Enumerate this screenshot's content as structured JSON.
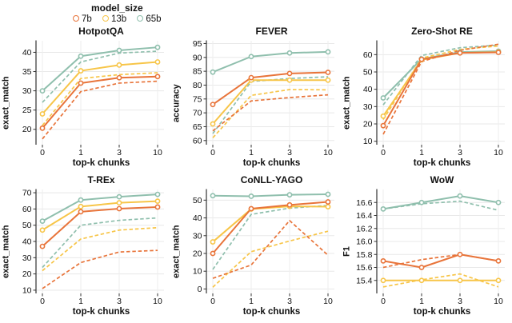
{
  "legend": {
    "title": "model_size",
    "items": [
      {
        "label": "7b",
        "color": "#e8743a"
      },
      {
        "label": "13b",
        "color": "#f7c548"
      },
      {
        "label": "65b",
        "color": "#8fbfad"
      }
    ]
  },
  "chart_data": {
    "note": "see charts array"
  },
  "charts": [
    {
      "type": "line",
      "title": "HotpotQA",
      "ylabel": "exact_match",
      "xlabel": "top-k chunks",
      "x_labels": [
        "0",
        "1",
        "3",
        "10"
      ],
      "ylim": [
        16,
        43
      ],
      "ytick_vals": [
        20,
        25,
        30,
        35,
        40
      ],
      "ytick_labels": [
        "20",
        "25",
        "30",
        "35",
        "40"
      ],
      "series": [
        {
          "model": "65b",
          "style": "solid",
          "values": [
            30,
            39,
            40.5,
            41.3
          ]
        },
        {
          "model": "65b",
          "style": "dashed",
          "values": [
            27,
            37.5,
            39.8,
            40.3
          ]
        },
        {
          "model": "13b",
          "style": "solid",
          "values": [
            24,
            35.2,
            36.7,
            37.5
          ]
        },
        {
          "model": "13b",
          "style": "dashed",
          "values": [
            21,
            33.2,
            34.2,
            34.7
          ]
        },
        {
          "model": "7b",
          "style": "solid",
          "values": [
            20.3,
            32,
            33.4,
            33.7
          ]
        },
        {
          "model": "7b",
          "style": "dashed",
          "values": [
            17.5,
            29.8,
            32,
            32.5
          ]
        }
      ]
    },
    {
      "type": "line",
      "title": "FEVER",
      "ylabel": "accuracy",
      "xlabel": "top-k chunks",
      "x_labels": [
        "0",
        "1",
        "3",
        "10"
      ],
      "ylim": [
        58.5,
        96
      ],
      "ytick_vals": [
        60,
        65,
        70,
        75,
        80,
        85,
        90,
        95
      ],
      "ytick_labels": [
        "60",
        "65",
        "70",
        "75",
        "80",
        "85",
        "90",
        "95"
      ],
      "series": [
        {
          "model": "65b",
          "style": "solid",
          "values": [
            84.7,
            90.3,
            91.6,
            92
          ]
        },
        {
          "model": "65b",
          "style": "dashed",
          "values": [
            62.5,
            81.3,
            82.4,
            83
          ]
        },
        {
          "model": "13b",
          "style": "solid",
          "values": [
            66,
            81.8,
            81.8,
            81.8
          ]
        },
        {
          "model": "13b",
          "style": "dashed",
          "values": [
            61,
            76.3,
            78.4,
            78.3
          ]
        },
        {
          "model": "7b",
          "style": "solid",
          "values": [
            73,
            82.7,
            84.2,
            84.6
          ]
        },
        {
          "model": "7b",
          "style": "dashed",
          "values": [
            63.5,
            74.3,
            75.5,
            76.5
          ]
        }
      ]
    },
    {
      "type": "line",
      "title": "Zero-Shot RE",
      "ylabel": "exact_match",
      "xlabel": "top-k chunks",
      "x_labels": [
        "0",
        "1",
        "3",
        "10"
      ],
      "ylim": [
        8,
        68
      ],
      "ytick_vals": [
        10,
        20,
        30,
        40,
        50,
        60
      ],
      "ytick_labels": [
        "10",
        "20",
        "30",
        "40",
        "50",
        "60"
      ],
      "series": [
        {
          "model": "65b",
          "style": "solid",
          "values": [
            35,
            57.5,
            61.5,
            62
          ]
        },
        {
          "model": "65b",
          "style": "dashed",
          "values": [
            31,
            59.5,
            64,
            65.5
          ]
        },
        {
          "model": "13b",
          "style": "solid",
          "values": [
            24.5,
            57,
            61,
            61.5
          ]
        },
        {
          "model": "13b",
          "style": "dashed",
          "values": [
            22.5,
            58,
            63,
            65
          ]
        },
        {
          "model": "7b",
          "style": "solid",
          "values": [
            19,
            57.3,
            61,
            61.3
          ]
        },
        {
          "model": "7b",
          "style": "dashed",
          "values": [
            14,
            56,
            62.5,
            66
          ]
        }
      ]
    },
    {
      "type": "line",
      "title": "T-REx",
      "ylabel": "exact_match",
      "xlabel": "top-k chunks",
      "x_labels": [
        "0",
        "1",
        "3",
        "10"
      ],
      "ylim": [
        8,
        72
      ],
      "ytick_vals": [
        10,
        20,
        30,
        40,
        50,
        60,
        70
      ],
      "ytick_labels": [
        "10",
        "20",
        "30",
        "40",
        "50",
        "60",
        "70"
      ],
      "series": [
        {
          "model": "65b",
          "style": "solid",
          "values": [
            52.5,
            65.5,
            67.5,
            69
          ]
        },
        {
          "model": "65b",
          "style": "dashed",
          "values": [
            24,
            50,
            53,
            54.5
          ]
        },
        {
          "model": "13b",
          "style": "solid",
          "values": [
            47,
            61.5,
            63.8,
            64.8
          ]
        },
        {
          "model": "13b",
          "style": "dashed",
          "values": [
            22,
            41.5,
            47,
            48.5
          ]
        },
        {
          "model": "7b",
          "style": "solid",
          "values": [
            37,
            58.3,
            60.2,
            61.2
          ]
        },
        {
          "model": "7b",
          "style": "dashed",
          "values": [
            11,
            27,
            33.5,
            34.5
          ]
        }
      ]
    },
    {
      "type": "line",
      "title": "CoNLL-YAGO",
      "ylabel": "exact_match",
      "xlabel": "top-k chunks",
      "x_labels": [
        "0",
        "1",
        "3",
        "10"
      ],
      "ylim": [
        -2.5,
        56
      ],
      "ytick_vals": [
        0,
        10,
        20,
        30,
        40,
        50
      ],
      "ytick_labels": [
        "0",
        "10",
        "20",
        "30",
        "40",
        "50"
      ],
      "series": [
        {
          "model": "65b",
          "style": "solid",
          "values": [
            52.5,
            52.2,
            53,
            53.3
          ]
        },
        {
          "model": "65b",
          "style": "dashed",
          "values": [
            11,
            42,
            45.5,
            47
          ]
        },
        {
          "model": "13b",
          "style": "solid",
          "values": [
            26.5,
            45,
            46.5,
            46.3
          ]
        },
        {
          "model": "13b",
          "style": "dashed",
          "values": [
            1,
            21,
            27,
            32.5
          ]
        },
        {
          "model": "7b",
          "style": "solid",
          "values": [
            20,
            45.2,
            47.3,
            49
          ]
        },
        {
          "model": "7b",
          "style": "dashed",
          "values": [
            6,
            13.5,
            38.5,
            19
          ]
        }
      ]
    },
    {
      "type": "line",
      "title": "WoW",
      "ylabel": "F1",
      "xlabel": "top-k chunks",
      "x_labels": [
        "0",
        "1",
        "3",
        "10"
      ],
      "ylim": [
        15.2,
        16.8
      ],
      "ytick_vals": [
        15.4,
        15.6,
        15.8,
        16.0,
        16.2,
        16.4,
        16.6
      ],
      "ytick_labels": [
        "15.4",
        "15.6",
        "15.8",
        "16.0",
        "16.2",
        "16.4",
        "16.6"
      ],
      "series": [
        {
          "model": "65b",
          "style": "solid",
          "values": [
            16.5,
            16.6,
            16.7,
            16.6
          ]
        },
        {
          "model": "65b",
          "style": "dashed",
          "values": [
            16.5,
            16.58,
            16.62,
            16.48
          ]
        },
        {
          "model": "13b",
          "style": "solid",
          "values": [
            15.4,
            15.4,
            15.4,
            15.4
          ]
        },
        {
          "model": "13b",
          "style": "dashed",
          "values": [
            15.3,
            15.41,
            15.5,
            15.3
          ]
        },
        {
          "model": "7b",
          "style": "solid",
          "values": [
            15.7,
            15.6,
            15.8,
            15.7
          ]
        },
        {
          "model": "7b",
          "style": "dashed",
          "values": [
            15.6,
            15.72,
            15.8,
            15.7
          ]
        }
      ]
    }
  ]
}
